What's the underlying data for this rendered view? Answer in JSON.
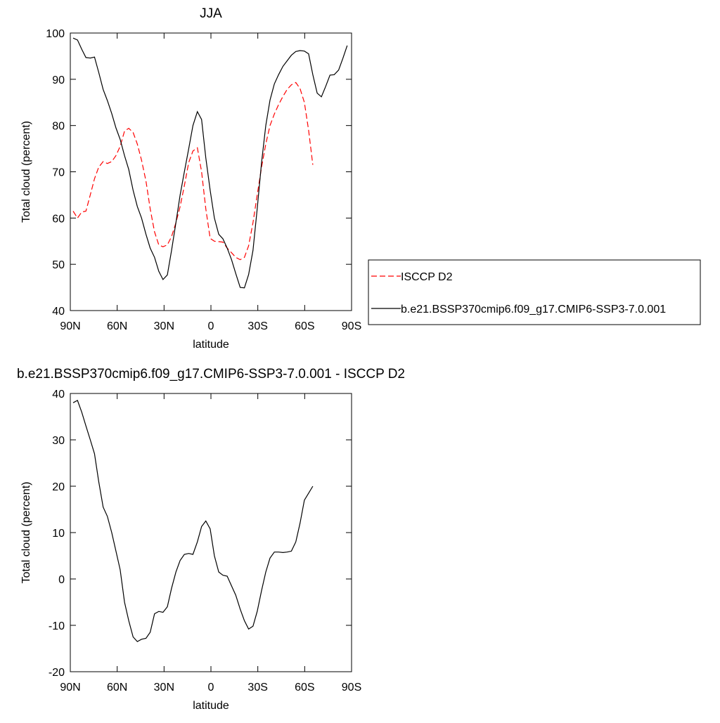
{
  "chart_data": [
    {
      "type": "line",
      "title": "JJA",
      "xlabel": "latitude",
      "ylabel": "Total cloud (percent)",
      "xlim": [
        90,
        -90
      ],
      "xticks": [
        {
          "value": 90,
          "label": "90N"
        },
        {
          "value": 60,
          "label": "60N"
        },
        {
          "value": 30,
          "label": "30N"
        },
        0,
        {
          "value": -30,
          "label": "30S"
        },
        {
          "value": -60,
          "label": "60S"
        },
        {
          "value": -90,
          "label": "90S"
        }
      ],
      "ylim": [
        40,
        100
      ],
      "yticks": [
        40,
        50,
        60,
        70,
        80,
        90,
        100
      ],
      "legend": "right",
      "x": [
        88.2,
        85.4,
        82.7,
        80.0,
        77.2,
        74.5,
        71.8,
        69.0,
        66.3,
        63.5,
        60.8,
        58.1,
        55.3,
        52.6,
        49.8,
        47.1,
        44.4,
        41.6,
        38.9,
        36.1,
        33.4,
        30.7,
        27.9,
        25.2,
        22.4,
        19.7,
        17.0,
        14.2,
        11.5,
        8.7,
        6.0,
        3.3,
        0.5,
        -2.2,
        -5.0,
        -7.7,
        -10.4,
        -13.2,
        -15.9,
        -18.7,
        -21.4,
        -24.1,
        -26.9,
        -29.6,
        -32.4,
        -35.1,
        -37.8,
        -40.6,
        -43.3,
        -46.1,
        -48.8,
        -51.5,
        -54.3,
        -57.0,
        -59.8,
        -62.5,
        -65.2,
        -68.0,
        -70.7,
        -73.5,
        -76.2,
        -78.9,
        -81.7,
        -84.4,
        -87.2
      ],
      "series": [
        {
          "name": "ISCCP D2",
          "color": "#ff0000",
          "line_style": "dashed",
          "values": [
            61.5,
            60,
            61.3,
            61.5,
            65,
            68.5,
            71,
            72.2,
            71.8,
            72.2,
            73.5,
            75.5,
            78.8,
            79.4,
            78.5,
            76,
            72.5,
            68,
            62,
            57,
            54.2,
            53.8,
            54.2,
            56,
            59,
            62.5,
            67,
            72,
            74.5,
            75.2,
            70,
            62,
            55.6,
            55,
            54.9,
            54.8,
            53.5,
            52.5,
            51.5,
            51,
            51.5,
            54,
            59,
            65,
            71,
            76,
            80,
            82.5,
            84.5,
            86.3,
            87.8,
            88.8,
            89.3,
            88,
            85,
            79,
            71.5,
            null,
            null,
            null,
            null,
            null,
            null,
            null,
            null
          ]
        },
        {
          "name": "b.e21.BSSP370cmip6.f09_g17.CMIP6-SSP3-7.0.001",
          "color": "#000000",
          "line_style": "solid",
          "values": [
            98.9,
            98.5,
            96.5,
            94.7,
            94.6,
            94.8,
            91.5,
            87.8,
            85.4,
            82.6,
            79.5,
            77,
            73.5,
            70.5,
            66,
            62.5,
            60,
            56.5,
            53.5,
            51.5,
            48.5,
            46.7,
            47.7,
            53,
            59,
            65,
            70,
            75,
            80,
            83,
            81.3,
            73,
            66,
            60,
            56.5,
            55.5,
            53.5,
            51,
            48,
            45,
            44.9,
            47.8,
            53,
            62,
            72,
            80,
            85.5,
            89,
            91,
            92.8,
            94,
            95.2,
            96,
            96.2,
            96.1,
            95.5,
            91,
            87,
            86.2,
            88.5,
            90.9,
            91,
            92,
            94.5,
            97.3
          ]
        }
      ]
    },
    {
      "type": "line",
      "title": "b.e21.BSSP370cmip6.f09_g17.CMIP6-SSP3-7.0.001 - ISCCP D2",
      "xlabel": "latitude",
      "ylabel": "Total cloud (percent)",
      "xlim": [
        90,
        -90
      ],
      "xticks": [
        {
          "value": 90,
          "label": "90N"
        },
        {
          "value": 60,
          "label": "60N"
        },
        {
          "value": 30,
          "label": "30N"
        },
        0,
        {
          "value": -30,
          "label": "30S"
        },
        {
          "value": -60,
          "label": "60S"
        },
        {
          "value": -90,
          "label": "90S"
        }
      ],
      "ylim": [
        -20,
        40
      ],
      "yticks": [
        -20,
        -10,
        0,
        10,
        20,
        30,
        40
      ],
      "x": [
        88.2,
        85.4,
        82.7,
        80.0,
        77.2,
        74.5,
        71.8,
        69.0,
        66.3,
        63.5,
        60.8,
        58.1,
        55.3,
        52.6,
        49.8,
        47.1,
        44.4,
        41.6,
        38.9,
        36.1,
        33.4,
        30.7,
        27.9,
        25.2,
        22.4,
        19.7,
        17.0,
        14.2,
        11.5,
        8.7,
        6.0,
        3.3,
        0.5,
        -2.2,
        -5.0,
        -7.7,
        -10.4,
        -13.2,
        -15.9,
        -18.7,
        -21.4,
        -24.1,
        -26.9,
        -29.6,
        -32.4,
        -35.1,
        -37.8,
        -40.6,
        -43.3,
        -46.1,
        -48.8,
        -51.5,
        -54.3,
        -57.0,
        -59.8,
        -62.5,
        -65.2
      ],
      "series": [
        {
          "color": "#000000",
          "line_style": "solid",
          "values": [
            38,
            38.5,
            36,
            33,
            30,
            27,
            21,
            15.5,
            13.5,
            10,
            6,
            2,
            -5,
            -9,
            -12.5,
            -13.5,
            -13,
            -12.8,
            -11.5,
            -7.5,
            -7,
            -7.2,
            -6,
            -2,
            1.5,
            4,
            5.3,
            5.5,
            5.3,
            8,
            11.3,
            12.5,
            10.8,
            5,
            1.5,
            0.8,
            0.6,
            -1.5,
            -3.5,
            -6.5,
            -9,
            -10.8,
            -10.2,
            -7,
            -2.5,
            1.5,
            4.5,
            5.8,
            5.8,
            5.7,
            5.8,
            6,
            8,
            12,
            17,
            18.5,
            20
          ]
        }
      ]
    }
  ]
}
